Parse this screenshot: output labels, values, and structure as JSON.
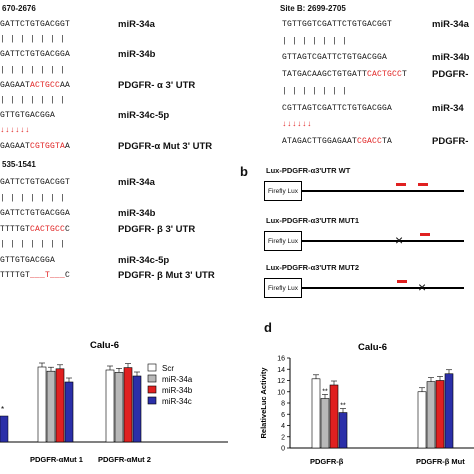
{
  "panel_a": {
    "site_a_header": "670-2676",
    "site_b_header": "Site B: 2699-2705",
    "site_c_header": "535-1541",
    "block_a": [
      {
        "seq": [
          {
            "t": "GATTCTGTGACGGT",
            "c": ""
          }
        ],
        "label": "miR-34a"
      },
      {
        "seq": [
          {
            "t": "| | | | | | |",
            "c": ""
          }
        ],
        "label": ""
      },
      {
        "seq": [
          {
            "t": "GATTCTGTGACGGA",
            "c": ""
          }
        ],
        "label": "miR-34b"
      },
      {
        "seq": [
          {
            "t": "| | | | | | |",
            "c": ""
          }
        ],
        "label": ""
      },
      {
        "seq": [
          {
            "t": "GAGAAT",
            "c": ""
          },
          {
            "t": "ACTGCC",
            "c": "red"
          },
          {
            "t": "AA",
            "c": ""
          }
        ],
        "label": "PDGFR- α 3' UTR"
      },
      {
        "seq": [
          {
            "t": "| | | | | | |",
            "c": ""
          }
        ],
        "label": ""
      },
      {
        "seq": [
          {
            "t": "GTTGTGACGGA",
            "c": ""
          }
        ],
        "label": "miR-34c-5p"
      },
      {
        "seq": [
          {
            "t": "↓↓↓↓↓↓",
            "c": "red"
          }
        ],
        "label": ""
      },
      {
        "seq": [
          {
            "t": "GAGAAT",
            "c": ""
          },
          {
            "t": "CGTGGTA",
            "c": "red"
          },
          {
            "t": "A",
            "c": ""
          }
        ],
        "label": "PDGFR-α Mut 3' UTR"
      }
    ],
    "block_b": [
      {
        "seq": [
          {
            "t": "TGTTGGTCGATTCTGTGACGGT",
            "c": ""
          }
        ],
        "label": "miR-34a"
      },
      {
        "seq": [
          {
            "t": "| | | | | | |",
            "c": ""
          }
        ],
        "label": ""
      },
      {
        "seq": [
          {
            "t": "GTTAGTCGATTCTGTGACGGA",
            "c": ""
          }
        ],
        "label": "miR-34b"
      },
      {
        "seq": [
          {
            "t": "TATGACAAGCTGTGATT",
            "c": ""
          },
          {
            "t": "CACTGCC",
            "c": "red"
          },
          {
            "t": "T",
            "c": ""
          }
        ],
        "label": "PDGFR-"
      },
      {
        "seq": [
          {
            "t": "| | | | | | |",
            "c": ""
          }
        ],
        "label": ""
      },
      {
        "seq": [
          {
            "t": "CGTTAGTCGATTCTGTGACGGA",
            "c": ""
          }
        ],
        "label": "miR-34"
      },
      {
        "seq": [
          {
            "t": "↓↓↓↓↓↓",
            "c": "red"
          }
        ],
        "label": ""
      },
      {
        "seq": [
          {
            "t": "ATAGACTTGGAGAAT",
            "c": ""
          },
          {
            "t": "CGACC",
            "c": "red"
          },
          {
            "t": "TA",
            "c": ""
          }
        ],
        "label": "PDGFR-"
      }
    ],
    "block_c": [
      {
        "seq": [
          {
            "t": "GATTCTGTGACGGT",
            "c": ""
          }
        ],
        "label": "miR-34a"
      },
      {
        "seq": [
          {
            "t": "| | | | | | |",
            "c": ""
          }
        ],
        "label": ""
      },
      {
        "seq": [
          {
            "t": "GATTCTGTGACGGA",
            "c": ""
          }
        ],
        "label": "miR-34b"
      },
      {
        "seq": [
          {
            "t": "TTTTGT",
            "c": ""
          },
          {
            "t": "CACTGCC",
            "c": "red"
          },
          {
            "t": "C",
            "c": ""
          }
        ],
        "label": "PDGFR- β 3' UTR"
      },
      {
        "seq": [
          {
            "t": "| | | | | | |",
            "c": ""
          }
        ],
        "label": ""
      },
      {
        "seq": [
          {
            "t": "GTTGTGACGGA",
            "c": ""
          }
        ],
        "label": "miR-34c-5p"
      },
      {
        "seq": [
          {
            "t": "TTTTGT",
            "c": ""
          },
          {
            "t": "___T___",
            "c": "red"
          },
          {
            "t": "C",
            "c": ""
          }
        ],
        "label": "PDGFR- β Mut 3' UTR"
      }
    ]
  },
  "panel_b": {
    "letter": "b",
    "constructs": [
      {
        "title": "Lux-PDGFR-α3'UTR WT",
        "box": "Firefly Lux",
        "red_sites": 2,
        "mutated_sites": 0
      },
      {
        "title": "Lux-PDGFR-α3'UTR MUT1",
        "box": "Firefly Lux",
        "red_sites": 1,
        "mutated_sites": 1
      },
      {
        "title": "Lux-PDGFR-α3'UTR MUT2",
        "box": "Firefly Lux",
        "red_sites": 1,
        "mutated_sites": 1
      }
    ]
  },
  "chart_data": [
    {
      "type": "bar",
      "title": "Calu-6",
      "categories": [
        "PDGFR-αMut 1",
        "PDGFR-αMut 2"
      ],
      "series": [
        {
          "name": "Scr",
          "values": [
            12.5,
            12.0
          ],
          "color": "#ffffff"
        },
        {
          "name": "miR-34a",
          "values": [
            11.8,
            11.6
          ],
          "color": "#b8b8b8"
        },
        {
          "name": "miR-34b",
          "values": [
            12.2,
            12.4
          ],
          "color": "#e02020"
        },
        {
          "name": "miR-34c",
          "values": [
            10.0,
            11.0
          ],
          "color": "#2b2fa8"
        }
      ],
      "partial_bar_label": "*",
      "ylim": [
        0,
        16
      ]
    },
    {
      "type": "bar",
      "panel_letter": "d",
      "title": "Calu-6",
      "ylabel": "RelativeLuc Activity",
      "yticks": [
        "0",
        "2",
        "4",
        "6",
        "8",
        "10",
        "12",
        "14",
        "16"
      ],
      "ylim": [
        0,
        16
      ],
      "categories": [
        "PDGFR-β",
        "PDGFR-β Mut"
      ],
      "series": [
        {
          "name": "Scr",
          "values": [
            12.3,
            10.0
          ],
          "color": "#ffffff"
        },
        {
          "name": "miR-34a",
          "values": [
            8.8,
            11.8
          ],
          "color": "#b8b8b8"
        },
        {
          "name": "miR-34b",
          "values": [
            11.2,
            12.0
          ],
          "color": "#e02020"
        },
        {
          "name": "miR-34c",
          "values": [
            6.3,
            13.2
          ],
          "color": "#2b2fa8"
        }
      ],
      "significance": [
        {
          "category": 0,
          "series": 1,
          "label": "**"
        },
        {
          "category": 0,
          "series": 3,
          "label": "**"
        }
      ]
    }
  ]
}
